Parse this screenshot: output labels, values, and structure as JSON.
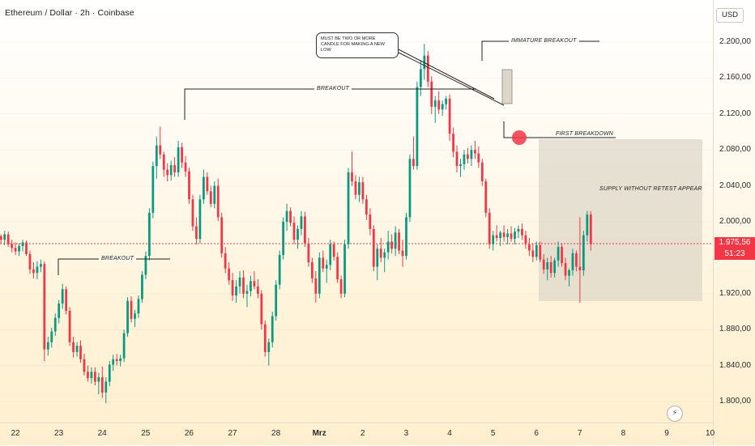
{
  "header": {
    "title": "Ethereum / Dollar · 2h · Coinbase",
    "currency": "USD"
  },
  "price_tag": {
    "price": "1.975,56",
    "countdown": "51:23",
    "color": "#f23645"
  },
  "colors": {
    "up": "#089981",
    "down": "#f23645",
    "zone": "#dcd6c8",
    "marker": "#f23645"
  },
  "annotations": {
    "callout": "MUST BE TWO OR MORE  CANDLE FOR MAKING A NEW LOW",
    "breakout_top": "BREAKOUT",
    "breakout_bottom": "BREAKOUT",
    "immature_breakout": "IMMATURE BREAKOUT",
    "first_breakdown": "FIRST BREAKDOWN",
    "supply": "SUPPLY WITHOUT RETEST APPEAR"
  },
  "chart_data": {
    "type": "candlestick",
    "ylim": [
      1780,
      2240
    ],
    "y_ticks": [
      "2.200,00",
      "2.160,00",
      "2.120,00",
      "2.080,00",
      "2.040,00",
      "2.000,00",
      "1.920,00",
      "1.880,00",
      "1.840,00",
      "1.800,00"
    ],
    "y_tick_values": [
      2200,
      2160,
      2120,
      2080,
      2040,
      2000,
      1920,
      1880,
      1840,
      1800
    ],
    "x_ticks": [
      "22",
      "23",
      "24",
      "25",
      "26",
      "27",
      "28",
      "Mrz",
      "2",
      "3",
      "4",
      "5",
      "6",
      "7",
      "8",
      "9",
      "10"
    ],
    "current_price": 1975.56,
    "candles_per_day": 12,
    "candles": [
      [
        1984,
        1986,
        1976,
        1980
      ],
      [
        1980,
        1990,
        1974,
        1986
      ],
      [
        1986,
        1989,
        1972,
        1975
      ],
      [
        1975,
        1980,
        1966,
        1971
      ],
      [
        1971,
        1977,
        1963,
        1967
      ],
      [
        1967,
        1976,
        1962,
        1973
      ],
      [
        1973,
        1980,
        1967,
        1977
      ],
      [
        1977,
        1979,
        1962,
        1964
      ],
      [
        1964,
        1968,
        1942,
        1947
      ],
      [
        1947,
        1955,
        1937,
        1943
      ],
      [
        1943,
        1956,
        1936,
        1950
      ],
      [
        1950,
        1958,
        1944,
        1953
      ],
      [
        1953,
        1956,
        1845,
        1858
      ],
      [
        1858,
        1872,
        1851,
        1866
      ],
      [
        1866,
        1882,
        1860,
        1878
      ],
      [
        1878,
        1898,
        1873,
        1893
      ],
      [
        1893,
        1913,
        1887,
        1909
      ],
      [
        1909,
        1931,
        1903,
        1925
      ],
      [
        1925,
        1928,
        1897,
        1901
      ],
      [
        1901,
        1905,
        1862,
        1866
      ],
      [
        1866,
        1872,
        1849,
        1855
      ],
      [
        1855,
        1866,
        1850,
        1862
      ],
      [
        1862,
        1868,
        1843,
        1847
      ],
      [
        1847,
        1853,
        1829,
        1833
      ],
      [
        1833,
        1840,
        1822,
        1826
      ],
      [
        1826,
        1838,
        1820,
        1833
      ],
      [
        1833,
        1838,
        1818,
        1822
      ],
      [
        1822,
        1832,
        1808,
        1827
      ],
      [
        1827,
        1839,
        1804,
        1810
      ],
      [
        1810,
        1827,
        1798,
        1822
      ],
      [
        1822,
        1845,
        1817,
        1841
      ],
      [
        1841,
        1852,
        1834,
        1847
      ],
      [
        1847,
        1853,
        1840,
        1845
      ],
      [
        1845,
        1852,
        1839,
        1848
      ],
      [
        1848,
        1880,
        1844,
        1876
      ],
      [
        1876,
        1916,
        1872,
        1912
      ],
      [
        1912,
        1917,
        1888,
        1892
      ],
      [
        1892,
        1902,
        1883,
        1898
      ],
      [
        1898,
        1918,
        1893,
        1914
      ],
      [
        1914,
        1945,
        1910,
        1941
      ],
      [
        1941,
        1967,
        1936,
        1962
      ],
      [
        1962,
        2015,
        1957,
        2010
      ],
      [
        2010,
        2067,
        2004,
        2062
      ],
      [
        2062,
        2095,
        2048,
        2085
      ],
      [
        2085,
        2106,
        2070,
        2075
      ],
      [
        2075,
        2078,
        2050,
        2058
      ],
      [
        2058,
        2065,
        2045,
        2052
      ],
      [
        2052,
        2068,
        2046,
        2063
      ],
      [
        2063,
        2072,
        2050,
        2055
      ],
      [
        2055,
        2090,
        2050,
        2083
      ],
      [
        2083,
        2088,
        2060,
        2066
      ],
      [
        2066,
        2073,
        2050,
        2056
      ],
      [
        2056,
        2060,
        2020,
        2025
      ],
      [
        2025,
        2030,
        1990,
        1995
      ],
      [
        1995,
        2005,
        1975,
        1981
      ],
      [
        1981,
        2030,
        1976,
        2025
      ],
      [
        2025,
        2058,
        2020,
        2050
      ],
      [
        2050,
        2055,
        2030,
        2034
      ],
      [
        2034,
        2040,
        2016,
        2020
      ],
      [
        2020,
        2045,
        2015,
        2040
      ],
      [
        2040,
        2048,
        2001,
        2005
      ],
      [
        2005,
        2010,
        1960,
        1965
      ],
      [
        1965,
        1972,
        1943,
        1948
      ],
      [
        1948,
        1955,
        1930,
        1935
      ],
      [
        1935,
        1943,
        1912,
        1918
      ],
      [
        1918,
        1935,
        1910,
        1928
      ],
      [
        1928,
        1945,
        1920,
        1938
      ],
      [
        1938,
        1946,
        1915,
        1920
      ],
      [
        1920,
        1930,
        1905,
        1923
      ],
      [
        1923,
        1940,
        1917,
        1934
      ],
      [
        1934,
        1945,
        1925,
        1928
      ],
      [
        1928,
        1936,
        1915,
        1920
      ],
      [
        1920,
        1924,
        1880,
        1886
      ],
      [
        1886,
        1890,
        1850,
        1855
      ],
      [
        1855,
        1870,
        1840,
        1866
      ],
      [
        1866,
        1900,
        1860,
        1895
      ],
      [
        1895,
        1935,
        1890,
        1930
      ],
      [
        1930,
        1968,
        1925,
        1963
      ],
      [
        1963,
        2005,
        1958,
        2000
      ],
      [
        2000,
        2020,
        1990,
        2012
      ],
      [
        2012,
        2016,
        1995,
        1999
      ],
      [
        1999,
        2006,
        1975,
        1980
      ],
      [
        1980,
        1996,
        1970,
        1992
      ],
      [
        1992,
        2012,
        1985,
        2006
      ],
      [
        2006,
        2011,
        1972,
        1976
      ],
      [
        1976,
        1982,
        1950,
        1955
      ],
      [
        1955,
        1960,
        1932,
        1937
      ],
      [
        1937,
        1945,
        1910,
        1920
      ],
      [
        1920,
        1966,
        1915,
        1960
      ],
      [
        1960,
        1968,
        1944,
        1948
      ],
      [
        1948,
        1958,
        1932,
        1952
      ],
      [
        1952,
        1980,
        1946,
        1975
      ],
      [
        1975,
        1978,
        1957,
        1961
      ],
      [
        1961,
        1966,
        1932,
        1936
      ],
      [
        1936,
        1940,
        1915,
        1920
      ],
      [
        1920,
        1980,
        1916,
        1975
      ],
      [
        1975,
        2060,
        1970,
        2055
      ],
      [
        2055,
        2078,
        2040,
        2045
      ],
      [
        2045,
        2052,
        2025,
        2030
      ],
      [
        2030,
        2050,
        2022,
        2044
      ],
      [
        2044,
        2050,
        2020,
        2025
      ],
      [
        2025,
        2030,
        2002,
        2008
      ],
      [
        2008,
        2015,
        1985,
        1992
      ],
      [
        1992,
        1996,
        1945,
        1950
      ],
      [
        1950,
        1975,
        1935,
        1970
      ],
      [
        1970,
        1982,
        1955,
        1960
      ],
      [
        1960,
        1970,
        1944,
        1966
      ],
      [
        1966,
        1990,
        1958,
        1978
      ],
      [
        1978,
        1986,
        1965,
        1970
      ],
      [
        1970,
        1995,
        1962,
        1988
      ],
      [
        1988,
        1992,
        1964,
        1968
      ],
      [
        1968,
        1980,
        1950,
        1962
      ],
      [
        1962,
        2010,
        1958,
        2005
      ],
      [
        2005,
        2075,
        2000,
        2070
      ],
      [
        2070,
        2095,
        2058,
        2062
      ],
      [
        2062,
        2156,
        2058,
        2150
      ],
      [
        2150,
        2180,
        2140,
        2170
      ],
      [
        2170,
        2198,
        2158,
        2185
      ],
      [
        2185,
        2190,
        2150,
        2156
      ],
      [
        2156,
        2162,
        2120,
        2128
      ],
      [
        2128,
        2140,
        2110,
        2135
      ],
      [
        2135,
        2145,
        2120,
        2125
      ],
      [
        2125,
        2135,
        2118,
        2131
      ],
      [
        2131,
        2140,
        2125,
        2137
      ],
      [
        2137,
        2142,
        2090,
        2098
      ],
      [
        2098,
        2105,
        2072,
        2078
      ],
      [
        2078,
        2085,
        2055,
        2062
      ],
      [
        2062,
        2070,
        2050,
        2064
      ],
      [
        2064,
        2080,
        2058,
        2075
      ],
      [
        2075,
        2082,
        2065,
        2070
      ],
      [
        2070,
        2085,
        2062,
        2080
      ],
      [
        2080,
        2090,
        2070,
        2076
      ],
      [
        2076,
        2084,
        2060,
        2066
      ],
      [
        2066,
        2070,
        2040,
        2045
      ],
      [
        2045,
        2048,
        2005,
        2010
      ],
      [
        2010,
        2015,
        1970,
        1975
      ],
      [
        1975,
        1990,
        1968,
        1985
      ],
      [
        1985,
        1996,
        1978,
        1982
      ],
      [
        1982,
        1990,
        1973,
        1988
      ],
      [
        1988,
        1996,
        1978,
        1983
      ],
      [
        1983,
        1992,
        1975,
        1987
      ],
      [
        1987,
        1995,
        1978,
        1981
      ],
      [
        1981,
        1993,
        1975,
        1989
      ],
      [
        1989,
        1996,
        1982,
        1992
      ],
      [
        1992,
        1998,
        1980,
        1985
      ],
      [
        1985,
        1990,
        1970,
        1975
      ],
      [
        1975,
        1982,
        1962,
        1968
      ],
      [
        1968,
        1976,
        1955,
        1961
      ],
      [
        1961,
        1978,
        1957,
        1974
      ],
      [
        1974,
        1978,
        1955,
        1958
      ],
      [
        1958,
        1964,
        1942,
        1947
      ],
      [
        1947,
        1960,
        1935,
        1955
      ],
      [
        1955,
        1962,
        1938,
        1943
      ],
      [
        1943,
        1960,
        1938,
        1957
      ],
      [
        1957,
        1978,
        1950,
        1972
      ],
      [
        1972,
        1976,
        1950,
        1954
      ],
      [
        1954,
        1960,
        1935,
        1940
      ],
      [
        1940,
        1948,
        1928,
        1946
      ],
      [
        1946,
        1970,
        1940,
        1965
      ],
      [
        1965,
        1968,
        1945,
        1950
      ],
      [
        1950,
        2005,
        1910,
        1946
      ],
      [
        1946,
        1990,
        1940,
        1985
      ],
      [
        1985,
        2012,
        1978,
        2008
      ],
      [
        2008,
        2012,
        1968,
        1975
      ]
    ]
  }
}
